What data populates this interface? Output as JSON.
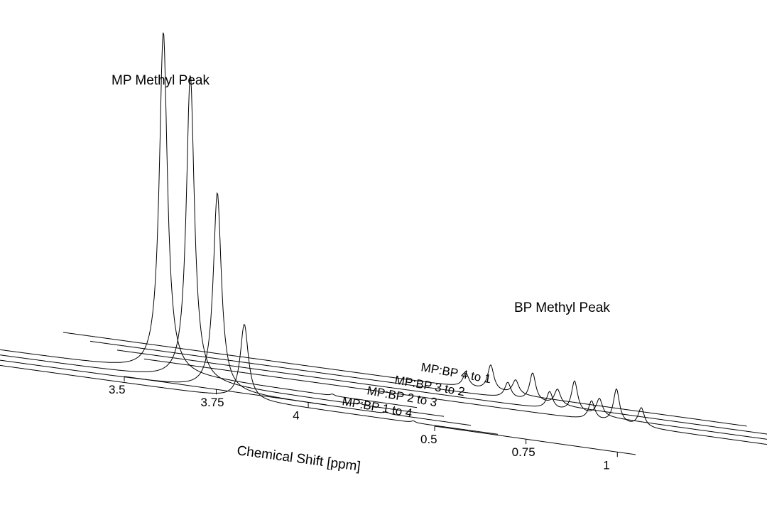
{
  "chart_data": {
    "type": "line",
    "style": "3d-waterfall",
    "xlabel": "Chemical Shift [ppm]",
    "annotations": [
      "MP Methyl Peak",
      "BP Methyl Peak"
    ],
    "panels": [
      {
        "name": "MP region",
        "xlim": [
          3.5,
          4.05
        ],
        "ticks": [
          3.5,
          3.75,
          4
        ],
        "tick_labels": [
          "3.5",
          "3.75",
          "4"
        ],
        "peaks": [
          {
            "series": "MP:BP 1 to 4",
            "center": 3.84,
            "height": 0.22,
            "width": 0.004
          },
          {
            "series": "MP:BP 2 to 3",
            "center": 3.84,
            "height": 0.58,
            "width": 0.004
          },
          {
            "series": "MP:BP 3 to 2",
            "center": 3.84,
            "height": 0.9,
            "width": 0.004
          },
          {
            "series": "MP:BP 4 to 1",
            "center": 3.84,
            "height": 1.0,
            "width": 0.004
          }
        ]
      },
      {
        "name": "BP region",
        "xlim": [
          0.5,
          1.05
        ],
        "ticks": [
          0.5,
          0.75,
          1
        ],
        "tick_labels": [
          "0.5",
          "0.75",
          "1"
        ],
        "triplet": {
          "centers": [
            0.86,
            0.88,
            0.9
          ],
          "rel": [
            0.55,
            1.0,
            0.55
          ],
          "width": 0.003
        },
        "peak_heights": [
          {
            "series": "MP:BP 1 to 4",
            "height": 0.12
          },
          {
            "series": "MP:BP 2 to 3",
            "height": 0.11
          },
          {
            "series": "MP:BP 3 to 2",
            "height": 0.1
          },
          {
            "series": "MP:BP 4 to 1",
            "height": 0.09
          }
        ]
      }
    ],
    "series": [
      {
        "name": "MP:BP 1 to 4"
      },
      {
        "name": "MP:BP 2 to 3"
      },
      {
        "name": "MP:BP 3 to 2"
      },
      {
        "name": "MP:BP 4 to 1"
      }
    ]
  }
}
